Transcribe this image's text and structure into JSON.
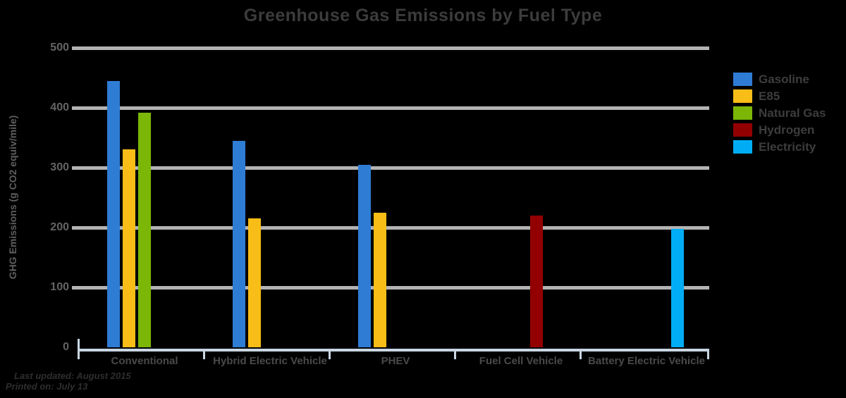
{
  "title": "Greenhouse Gas Emissions by Fuel Type",
  "footer": {
    "line1": "Last updated: August 2015",
    "line2": "Printed on: July 13"
  },
  "chart_data": {
    "type": "bar",
    "title": "Greenhouse Gas Emissions by Fuel Type",
    "xlabel": "",
    "ylabel": "GHG Emissions (g CO2 equiv/mile)",
    "ylim": [
      0,
      500
    ],
    "yticks": [
      0,
      100,
      200,
      300,
      400,
      500
    ],
    "grid": true,
    "legend_position": "right",
    "categories": [
      "Conventional",
      "Hybrid Electric Vehicle",
      "PHEV",
      "Fuel Cell Vehicle",
      "Battery Electric Vehicle"
    ],
    "series": [
      {
        "name": "Gasoline",
        "color": "#2e7cd4",
        "values": [
          445,
          345,
          305,
          null,
          null
        ]
      },
      {
        "name": "E85",
        "color": "#f9bd17",
        "values": [
          330,
          215,
          225,
          null,
          null
        ]
      },
      {
        "name": "Natural Gas",
        "color": "#7cb708",
        "values": [
          392,
          null,
          null,
          null,
          null
        ]
      },
      {
        "name": "Hydrogen",
        "color": "#930001",
        "values": [
          null,
          null,
          null,
          220,
          null
        ]
      },
      {
        "name": "Electricity",
        "color": "#00adf5",
        "values": [
          null,
          null,
          null,
          null,
          198
        ]
      }
    ]
  },
  "colors": {
    "background": "#000000",
    "gridline": "#b3b3b3",
    "axis_line": "#c9d6e3",
    "title_text": "#3c3c3c",
    "ylabel_text": "#5e5e5e",
    "tick_text": "#646464",
    "category_text": "#4a4a4a",
    "legend_text": "#3d3d3d",
    "footer_text": "#2e2e2e"
  }
}
